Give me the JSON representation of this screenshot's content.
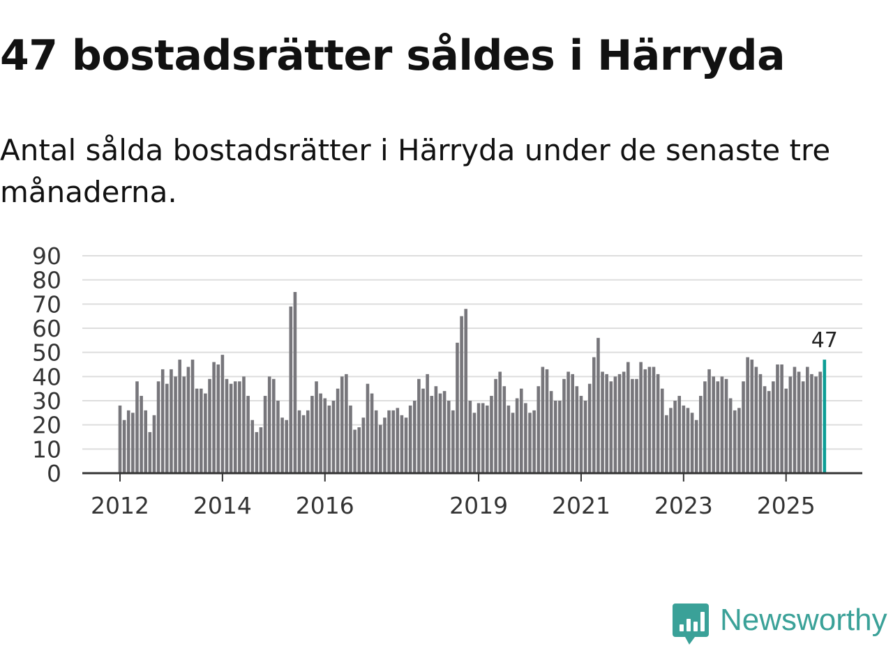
{
  "headline": "47 bostadsrätter såldes i Härryda",
  "subtitle": "Antal sålda bostadsrätter i Härryda under de senaste tre månaderna.",
  "brand": {
    "name": "Newsworthy",
    "icon": "newsworthy-logo-icon",
    "color": "#3aa198"
  },
  "colors": {
    "bar": "#77767b",
    "highlight": "#0d9e96",
    "grid": "#dddddd",
    "axis": "#333333"
  },
  "chart_data": {
    "type": "bar",
    "title": "47 bostadsrätter såldes i Härryda",
    "xlabel": "",
    "ylabel": "",
    "ylim": [
      0,
      90
    ],
    "yticks": [
      "0",
      "10",
      "20",
      "30",
      "40",
      "50",
      "60",
      "70",
      "80",
      "90"
    ],
    "grid": true,
    "start": "2012-01",
    "xticks": [
      {
        "label": "2012",
        "index": 0
      },
      {
        "label": "2014",
        "index": 24
      },
      {
        "label": "2016",
        "index": 48
      },
      {
        "label": "2019",
        "index": 84
      },
      {
        "label": "2021",
        "index": 108
      },
      {
        "label": "2023",
        "index": 132
      },
      {
        "label": "2025",
        "index": 156
      }
    ],
    "annotation": {
      "text": "47",
      "index": 165
    },
    "values": [
      28,
      22,
      26,
      25,
      38,
      32,
      26,
      17,
      24,
      38,
      43,
      37,
      43,
      40,
      47,
      40,
      44,
      47,
      35,
      35,
      33,
      39,
      46,
      45,
      49,
      39,
      37,
      38,
      38,
      40,
      32,
      22,
      17,
      19,
      32,
      40,
      39,
      30,
      23,
      22,
      69,
      75,
      26,
      24,
      26,
      32,
      38,
      33,
      31,
      28,
      30,
      35,
      40,
      41,
      28,
      18,
      19,
      23,
      37,
      33,
      26,
      20,
      23,
      26,
      26,
      27,
      24,
      23,
      28,
      30,
      39,
      35,
      41,
      32,
      36,
      33,
      34,
      30,
      26,
      54,
      65,
      68,
      30,
      25,
      29,
      29,
      28,
      32,
      39,
      42,
      36,
      28,
      25,
      31,
      35,
      29,
      25,
      26,
      36,
      44,
      43,
      34,
      30,
      30,
      39,
      42,
      41,
      36,
      32,
      30,
      37,
      48,
      56,
      42,
      41,
      38,
      40,
      41,
      42,
      46,
      39,
      39,
      46,
      43,
      44,
      44,
      41,
      35,
      24,
      27,
      30,
      32,
      28,
      27,
      25,
      22,
      32,
      38,
      43,
      40,
      38,
      40,
      39,
      31,
      26,
      27,
      38,
      48,
      47,
      44,
      41,
      36,
      34,
      38,
      45,
      45,
      35,
      40,
      44,
      42,
      38,
      44,
      41,
      40,
      42,
      47
    ]
  }
}
